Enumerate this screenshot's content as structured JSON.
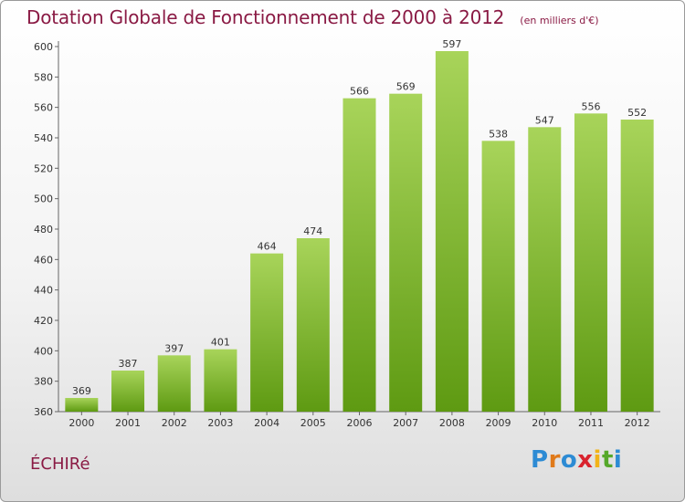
{
  "header": {
    "title": "Dotation Globale de Fonctionnement de 2000 à 2012",
    "unit": "(en milliers d'€)"
  },
  "footer": {
    "commune": "ÉCHIRé",
    "logo": [
      "P",
      "r",
      "o",
      "x",
      "i",
      "t",
      "i"
    ]
  },
  "colors": {
    "title": "#8a1a44",
    "bar_top": "#a8d45a",
    "bar_bottom": "#5e9a12",
    "logo": [
      "#2d8bd4",
      "#e07a1a",
      "#2d8bd4",
      "#d9232e",
      "#f2b319",
      "#55a82a",
      "#2d8bd4"
    ]
  },
  "chart_data": {
    "type": "bar",
    "title": "Dotation Globale de Fonctionnement de 2000 à 2012",
    "xlabel": "",
    "ylabel": "",
    "categories": [
      "2000",
      "2001",
      "2002",
      "2003",
      "2004",
      "2005",
      "2006",
      "2007",
      "2008",
      "2009",
      "2010",
      "2011",
      "2012"
    ],
    "values": [
      369,
      387,
      397,
      401,
      464,
      474,
      566,
      569,
      597,
      538,
      547,
      556,
      552
    ],
    "ylim": [
      360,
      600
    ],
    "yticks": [
      360,
      380,
      400,
      420,
      440,
      460,
      480,
      500,
      520,
      540,
      560,
      580,
      600
    ],
    "grid": false
  }
}
